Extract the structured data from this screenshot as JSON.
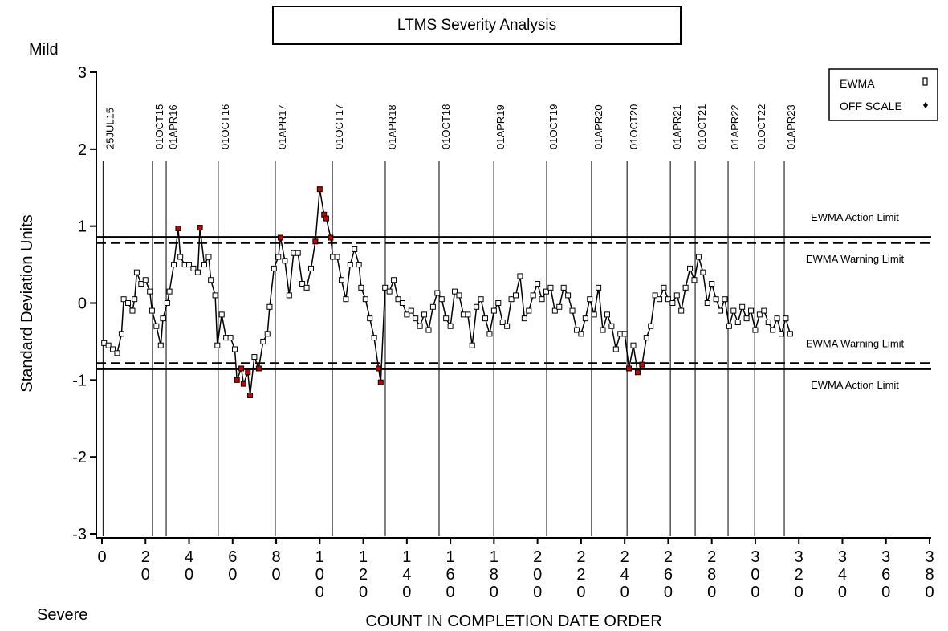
{
  "chart_data": {
    "type": "line",
    "title": "LTMS Severity Analysis",
    "y_top_label": "Mild",
    "y_bottom_label": "Severe",
    "y_axis_label": "Standard Deviation Units",
    "x_axis_label": "COUNT IN COMPLETION DATE ORDER",
    "xlim": [
      0,
      380
    ],
    "ylim": [
      -3,
      3
    ],
    "xticks": [
      0,
      20,
      40,
      60,
      80,
      100,
      120,
      140,
      160,
      180,
      200,
      220,
      240,
      260,
      280,
      300,
      320,
      340,
      360,
      380
    ],
    "yticks": [
      -3,
      -2,
      -1,
      0,
      1,
      2,
      3
    ],
    "x": [
      1,
      3,
      5,
      7,
      9,
      10,
      12,
      14,
      15,
      16,
      18,
      20,
      22,
      23,
      25,
      27,
      28,
      30,
      31,
      33,
      35,
      36,
      38,
      40,
      42,
      44,
      45,
      47,
      49,
      50,
      52,
      53,
      55,
      57,
      59,
      61,
      62,
      64,
      65,
      67,
      68,
      70,
      72,
      74,
      76,
      77,
      79,
      81,
      82,
      84,
      86,
      88,
      90,
      92,
      94,
      96,
      98,
      100,
      102,
      103,
      105,
      106,
      108,
      110,
      112,
      114,
      116,
      118,
      119,
      121,
      123,
      125,
      127,
      128,
      130,
      132,
      134,
      136,
      138,
      140,
      142,
      144,
      146,
      148,
      150,
      152,
      154,
      156,
      158,
      160,
      162,
      164,
      166,
      168,
      170,
      172,
      174,
      176,
      178,
      180,
      182,
      184,
      186,
      188,
      190,
      192,
      194,
      196,
      198,
      200,
      202,
      204,
      206,
      208,
      210,
      212,
      214,
      216,
      218,
      220,
      222,
      224,
      226,
      228,
      230,
      232,
      234,
      236,
      238,
      240,
      242,
      244,
      246,
      248,
      250,
      252,
      254,
      256,
      258,
      260,
      262,
      264,
      266,
      268,
      270,
      272,
      274,
      276,
      278,
      280,
      282,
      284,
      286,
      288,
      290,
      292,
      294,
      296,
      298,
      300,
      302,
      304,
      306,
      308,
      310,
      312,
      314,
      316
    ],
    "series": [
      {
        "name": "EWMA",
        "color": "#000000",
        "values": [
          -0.52,
          -0.55,
          -0.6,
          -0.65,
          -0.4,
          0.05,
          0.0,
          -0.1,
          0.05,
          0.4,
          0.25,
          0.3,
          0.15,
          -0.1,
          -0.3,
          -0.55,
          -0.2,
          0.0,
          0.15,
          0.5,
          0.97,
          0.6,
          0.5,
          0.5,
          0.45,
          0.4,
          0.98,
          0.5,
          0.6,
          0.3,
          0.1,
          -0.55,
          -0.15,
          -0.45,
          -0.45,
          -0.6,
          -1.0,
          -0.85,
          -1.05,
          -0.9,
          -1.2,
          -0.7,
          -0.85,
          -0.5,
          -0.4,
          -0.05,
          0.45,
          0.6,
          0.85,
          0.55,
          0.1,
          0.65,
          0.65,
          0.25,
          0.2,
          0.45,
          0.8,
          1.48,
          1.15,
          1.1,
          0.85,
          0.6,
          0.6,
          0.3,
          0.05,
          0.5,
          0.7,
          0.5,
          0.2,
          0.05,
          -0.2,
          -0.45,
          -0.85,
          -1.03,
          0.2,
          0.15,
          0.3,
          0.05,
          0.0,
          -0.15,
          -0.1,
          -0.2,
          -0.3,
          -0.15,
          -0.35,
          -0.05,
          0.13,
          0.05,
          -0.2,
          -0.3,
          0.15,
          0.1,
          -0.15,
          -0.15,
          -0.55,
          -0.05,
          0.05,
          -0.2,
          -0.4,
          -0.1,
          0.0,
          -0.25,
          -0.3,
          0.05,
          0.1,
          0.35,
          -0.2,
          -0.1,
          0.1,
          0.25,
          0.05,
          0.15,
          0.2,
          -0.1,
          -0.05,
          0.2,
          0.1,
          -0.1,
          -0.35,
          -0.4,
          -0.2,
          0.05,
          -0.15,
          0.2,
          -0.35,
          -0.15,
          -0.3,
          -0.6,
          -0.4,
          -0.4,
          -0.85,
          -0.55,
          -0.9,
          -0.8,
          -0.45,
          -0.3,
          0.1,
          0.05,
          0.2,
          0.05,
          0.0,
          0.1,
          -0.1,
          0.2,
          0.45,
          0.3,
          0.6,
          0.4,
          0.0,
          0.25,
          0.05,
          -0.1,
          0.05,
          -0.3,
          -0.1,
          -0.25,
          -0.05,
          -0.2,
          -0.1,
          -0.35,
          -0.15,
          -0.1,
          -0.25,
          -0.35,
          -0.2,
          -0.4,
          -0.2,
          -0.4
        ]
      }
    ],
    "flag_color": "#cc0000",
    "off_scale_label": "OFF SCALE",
    "limits": [
      {
        "label": "EWMA Action Limit",
        "value": 0.86,
        "style": "solid"
      },
      {
        "label": "EWMA Warning Limit",
        "value": 0.78,
        "style": "dashed"
      },
      {
        "label": "EWMA Warning Limit",
        "value": -0.78,
        "style": "dashed"
      },
      {
        "label": "EWMA Action Limit",
        "value": -0.86,
        "style": "solid"
      }
    ],
    "date_lines": [
      {
        "x": 0.5,
        "label": "25JUL15"
      },
      {
        "x": 23.2,
        "label": "01OCT15"
      },
      {
        "x": 29.5,
        "label": "01APR16"
      },
      {
        "x": 53.4,
        "label": "01OCT16"
      },
      {
        "x": 79.6,
        "label": "01APR17"
      },
      {
        "x": 105.8,
        "label": "01OCT17"
      },
      {
        "x": 130.1,
        "label": "01APR18"
      },
      {
        "x": 154.8,
        "label": "01OCT18"
      },
      {
        "x": 179.9,
        "label": "01APR19"
      },
      {
        "x": 204.2,
        "label": "01OCT19"
      },
      {
        "x": 224.8,
        "label": "01APR20"
      },
      {
        "x": 241.1,
        "label": "01OCT20"
      },
      {
        "x": 261.0,
        "label": "01APR21"
      },
      {
        "x": 272.4,
        "label": "01OCT21"
      },
      {
        "x": 287.5,
        "label": "01APR22"
      },
      {
        "x": 299.7,
        "label": "01OCT22"
      },
      {
        "x": 313.3,
        "label": "01APR23"
      }
    ]
  }
}
